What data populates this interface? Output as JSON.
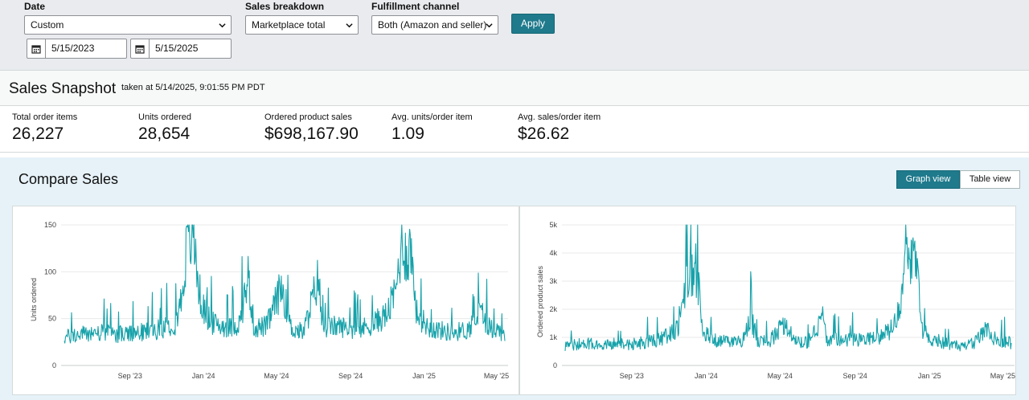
{
  "filters": {
    "date_label": "Date",
    "date_range_value": "Custom",
    "start_date": "5/15/2023",
    "end_date": "5/15/2025",
    "breakdown_label": "Sales breakdown",
    "breakdown_value": "Marketplace total",
    "fulfillment_label": "Fulfillment channel",
    "fulfillment_value": "Both (Amazon and seller)",
    "apply_label": "Apply"
  },
  "snapshot": {
    "title": "Sales Snapshot",
    "taken_at": "taken at 5/14/2025, 9:01:55 PM PDT",
    "metrics": [
      {
        "label": "Total order items",
        "value": "26,227"
      },
      {
        "label": "Units ordered",
        "value": "28,654"
      },
      {
        "label": "Ordered product sales",
        "value": "$698,167.90"
      },
      {
        "label": "Avg. units/order item",
        "value": "1.09"
      },
      {
        "label": "Avg. sales/order item",
        "value": "$26.62"
      }
    ]
  },
  "compare": {
    "title": "Compare Sales",
    "graph_view_label": "Graph view",
    "table_view_label": "Table view"
  },
  "colors": {
    "accent": "#1f7a8c",
    "series": "#17a2aa",
    "panel_bg": "#e6f2f8"
  },
  "chart_data": [
    {
      "type": "line",
      "ylabel": "Units ordered",
      "ylim": [
        0,
        150
      ],
      "yticks": [
        "0",
        "50",
        "100",
        "150"
      ],
      "xticks": [
        "Sep '23",
        "Jan '24",
        "May '24",
        "Sep '24",
        "Jan '25",
        "May '25"
      ],
      "series": [
        {
          "x": [
            "2023-05-15",
            "2023-07-01",
            "2023-09-01",
            "2023-10-15",
            "2023-11-15",
            "2023-11-25",
            "2023-12-05",
            "2023-12-15",
            "2023-12-28",
            "2024-01-15",
            "2024-02-15",
            "2024-03-01",
            "2024-03-15",
            "2024-03-25",
            "2024-04-15",
            "2024-05-10",
            "2024-05-25",
            "2024-06-15",
            "2024-07-10",
            "2024-07-16",
            "2024-08-10",
            "2024-09-15",
            "2024-10-10",
            "2024-11-01",
            "2024-11-15",
            "2024-11-25",
            "2024-12-03",
            "2024-12-10",
            "2024-12-20",
            "2025-01-10",
            "2025-02-15",
            "2025-03-15",
            "2025-04-05",
            "2025-04-20",
            "2025-05-15"
          ],
          "values": [
            30,
            35,
            33,
            38,
            45,
            70,
            130,
            138,
            65,
            45,
            40,
            45,
            95,
            40,
            42,
            85,
            40,
            35,
            95,
            40,
            42,
            38,
            45,
            55,
            80,
            132,
            118,
            125,
            55,
            40,
            35,
            38,
            58,
            40,
            35
          ]
        }
      ]
    },
    {
      "type": "line",
      "ylabel": "Ordered product sales",
      "ylim": [
        0,
        5000
      ],
      "yticks": [
        "0",
        "1k",
        "2k",
        "3k",
        "4k",
        "5k"
      ],
      "xticks": [
        "Sep '23",
        "Jan '24",
        "May '24",
        "Sep '24",
        "Jan '25",
        "May '25"
      ],
      "series": [
        {
          "x": [
            "2023-05-15",
            "2023-07-01",
            "2023-09-01",
            "2023-10-15",
            "2023-11-15",
            "2023-11-25",
            "2023-12-05",
            "2023-12-15",
            "2023-12-28",
            "2024-01-15",
            "2024-02-15",
            "2024-03-01",
            "2024-03-15",
            "2024-03-25",
            "2024-04-15",
            "2024-05-10",
            "2024-05-25",
            "2024-06-15",
            "2024-07-10",
            "2024-07-16",
            "2024-08-10",
            "2024-09-15",
            "2024-10-10",
            "2024-11-01",
            "2024-11-15",
            "2024-11-25",
            "2024-12-03",
            "2024-12-10",
            "2024-12-20",
            "2025-01-10",
            "2025-02-15",
            "2025-03-15",
            "2025-04-05",
            "2025-04-20",
            "2025-05-15"
          ],
          "values": [
            700,
            800,
            750,
            900,
            1300,
            2500,
            3300,
            3500,
            1200,
            900,
            800,
            900,
            1700,
            850,
            900,
            1500,
            850,
            800,
            1700,
            900,
            950,
            900,
            1000,
            1300,
            2000,
            3800,
            4000,
            3600,
            1200,
            900,
            700,
            800,
            1300,
            900,
            800
          ]
        }
      ]
    }
  ]
}
